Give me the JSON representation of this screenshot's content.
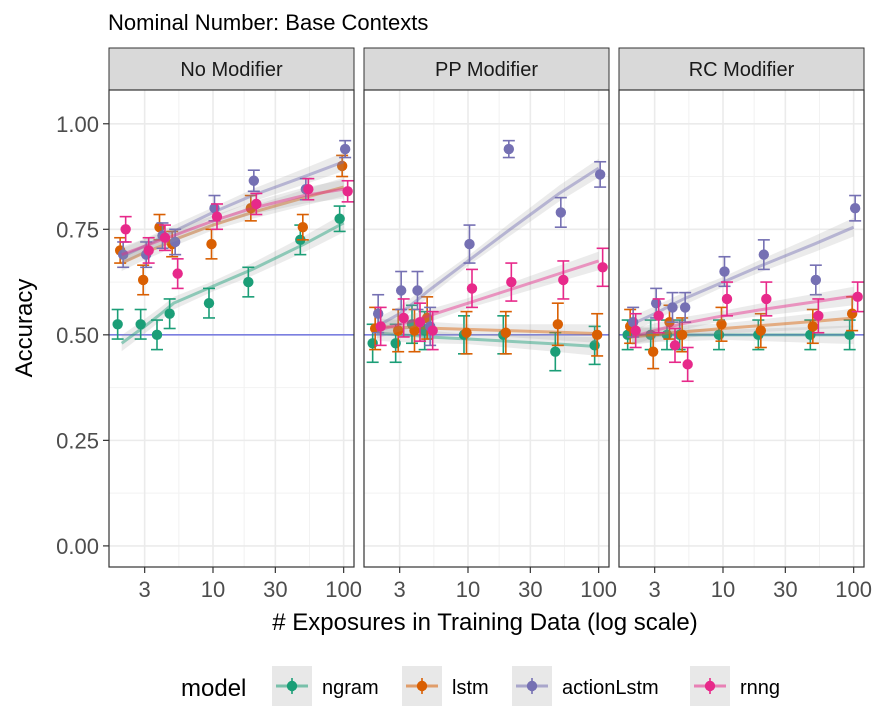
{
  "chart_data": {
    "type": "scatter",
    "title": "Nominal Number: Base Contexts",
    "xlabel": "# Exposures in Training Data (log scale)",
    "ylabel": "Accuracy",
    "x_scale": "log10",
    "xlim": [
      1.6,
      120
    ],
    "ylim": [
      -0.05,
      1.08
    ],
    "x_ticks": [
      3,
      10,
      30,
      100
    ],
    "x_tick_labels": [
      "3",
      "10",
      "30",
      "100"
    ],
    "y_ticks": [
      0,
      0.25,
      0.5,
      0.75,
      1.0
    ],
    "y_tick_labels": [
      "0.00",
      "0.25",
      "0.50",
      "0.75",
      "1.00"
    ],
    "reference_line": {
      "y": 0.5,
      "color": "#7b7fe0"
    },
    "grid": true,
    "legend": {
      "title": "model",
      "position": "bottom",
      "entries": [
        "ngram",
        "lstm",
        "actionLstm",
        "rnng"
      ]
    },
    "colors": {
      "ngram": "#1b9e77",
      "lstm": "#d95f02",
      "actionLstm": "#7570b3",
      "rnng": "#e7298a"
    },
    "x": [
      2,
      3,
      4,
      5,
      10,
      20,
      50,
      100
    ],
    "panels": [
      {
        "name": "No Modifier",
        "series": [
          {
            "name": "ngram",
            "values": [
              0.525,
              0.525,
              0.5,
              0.55,
              0.575,
              0.625,
              0.725,
              0.775
            ],
            "errors": [
              0.035,
              0.035,
              0.035,
              0.035,
              0.035,
              0.035,
              0.035,
              0.03
            ],
            "fit": [
              0.48,
              0.52,
              0.55,
              0.575,
              0.615,
              0.655,
              0.715,
              0.765
            ]
          },
          {
            "name": "lstm",
            "values": [
              0.7,
              0.63,
              0.755,
              0.715,
              0.715,
              0.8,
              0.755,
              0.9
            ],
            "errors": [
              0.03,
              0.035,
              0.03,
              0.03,
              0.035,
              0.03,
              0.03,
              0.025
            ],
            "fit": [
              0.67,
              0.695,
              0.71,
              0.725,
              0.76,
              0.79,
              0.825,
              0.85
            ]
          },
          {
            "name": "actionLstm",
            "values": [
              0.69,
              0.69,
              0.735,
              0.72,
              0.8,
              0.865,
              0.845,
              0.94
            ],
            "errors": [
              0.03,
              0.03,
              0.03,
              0.03,
              0.03,
              0.025,
              0.025,
              0.02
            ],
            "fit": [
              0.685,
              0.71,
              0.73,
              0.745,
              0.79,
              0.83,
              0.875,
              0.91
            ]
          },
          {
            "name": "rnng",
            "values": [
              0.75,
              0.7,
              0.73,
              0.645,
              0.78,
              0.81,
              0.845,
              0.84
            ],
            "errors": [
              0.03,
              0.03,
              0.03,
              0.035,
              0.03,
              0.025,
              0.025,
              0.025
            ],
            "fit": [
              0.69,
              0.71,
              0.725,
              0.735,
              0.77,
              0.8,
              0.83,
              0.845
            ]
          }
        ]
      },
      {
        "name": "PP Modifier",
        "series": [
          {
            "name": "ngram",
            "values": [
              0.48,
              0.48,
              0.525,
              0.51,
              0.5,
              0.5,
              0.46,
              0.475
            ],
            "errors": [
              0.045,
              0.045,
              0.045,
              0.045,
              0.045,
              0.045,
              0.045,
              0.045
            ],
            "fit": [
              0.505,
              0.5,
              0.498,
              0.495,
              0.49,
              0.485,
              0.478,
              0.472
            ]
          },
          {
            "name": "lstm",
            "values": [
              0.515,
              0.51,
              0.51,
              0.54,
              0.505,
              0.505,
              0.525,
              0.5
            ],
            "errors": [
              0.05,
              0.05,
              0.05,
              0.05,
              0.05,
              0.05,
              0.05,
              0.05
            ],
            "fit": [
              0.52,
              0.518,
              0.517,
              0.516,
              0.513,
              0.51,
              0.506,
              0.503
            ]
          },
          {
            "name": "actionLstm",
            "values": [
              0.55,
              0.605,
              0.605,
              0.52,
              0.715,
              0.94,
              0.79,
              0.88
            ],
            "errors": [
              0.045,
              0.045,
              0.045,
              0.045,
              0.045,
              0.02,
              0.035,
              0.03
            ],
            "fit": [
              0.52,
              0.55,
              0.58,
              0.605,
              0.675,
              0.745,
              0.835,
              0.895
            ]
          },
          {
            "name": "rnng",
            "values": [
              0.52,
              0.54,
              0.53,
              0.51,
              0.61,
              0.625,
              0.63,
              0.66
            ],
            "errors": [
              0.045,
              0.045,
              0.045,
              0.045,
              0.045,
              0.045,
              0.045,
              0.045
            ],
            "fit": [
              0.51,
              0.525,
              0.535,
              0.545,
              0.575,
              0.605,
              0.645,
              0.675
            ]
          }
        ]
      },
      {
        "name": "RC Modifier",
        "series": [
          {
            "name": "ngram",
            "values": [
              0.5,
              0.5,
              0.5,
              0.5,
              0.5,
              0.5,
              0.5,
              0.5
            ],
            "errors": [
              0.035,
              0.035,
              0.035,
              0.035,
              0.035,
              0.035,
              0.035,
              0.035
            ],
            "fit": [
              0.5,
              0.5,
              0.5,
              0.5,
              0.5,
              0.5,
              0.5,
              0.5
            ]
          },
          {
            "name": "lstm",
            "values": [
              0.52,
              0.46,
              0.53,
              0.5,
              0.525,
              0.51,
              0.52,
              0.55
            ],
            "errors": [
              0.04,
              0.04,
              0.04,
              0.04,
              0.04,
              0.04,
              0.04,
              0.04
            ],
            "fit": [
              0.495,
              0.5,
              0.505,
              0.507,
              0.515,
              0.522,
              0.532,
              0.54
            ]
          },
          {
            "name": "actionLstm",
            "values": [
              0.53,
              0.575,
              0.565,
              0.565,
              0.65,
              0.69,
              0.63,
              0.8
            ],
            "errors": [
              0.035,
              0.035,
              0.035,
              0.035,
              0.035,
              0.035,
              0.035,
              0.03
            ],
            "fit": [
              0.525,
              0.55,
              0.57,
              0.585,
              0.625,
              0.665,
              0.715,
              0.755
            ]
          },
          {
            "name": "rnng",
            "values": [
              0.51,
              0.545,
              0.475,
              0.43,
              0.585,
              0.585,
              0.545,
              0.59
            ],
            "errors": [
              0.04,
              0.04,
              0.04,
              0.04,
              0.04,
              0.04,
              0.04,
              0.035
            ],
            "fit": [
              0.495,
              0.51,
              0.52,
              0.527,
              0.545,
              0.56,
              0.578,
              0.592
            ]
          }
        ]
      }
    ]
  }
}
